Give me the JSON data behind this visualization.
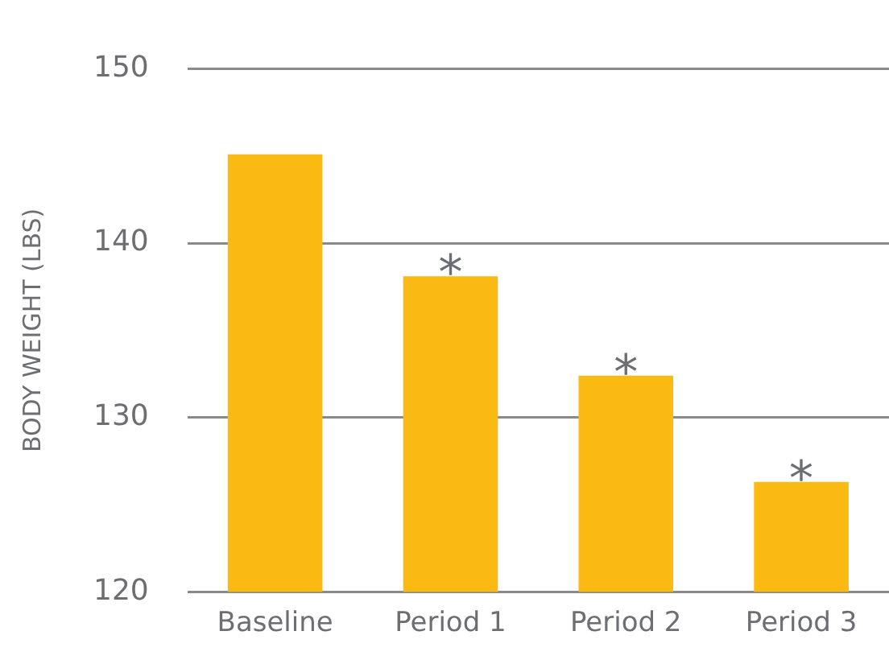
{
  "chart_data": {
    "type": "bar",
    "ylabel": "BODY WEIGHT (LBS)",
    "categories": [
      "Baseline",
      "Period 1",
      "Period 2",
      "Period 3"
    ],
    "values": [
      145.1,
      138.1,
      132.4,
      126.3
    ],
    "color": "#fbba12",
    "ylim": [
      120,
      150
    ],
    "yticks": [
      120,
      130,
      140,
      150
    ],
    "grid": "y",
    "legend": false,
    "annotations": [
      {
        "text": "*",
        "x": "Period 1",
        "y": 138.1
      },
      {
        "text": "*",
        "x": "Period 2",
        "y": 132.4
      },
      {
        "text": "*",
        "x": "Period 3",
        "y": 126.3
      }
    ]
  }
}
